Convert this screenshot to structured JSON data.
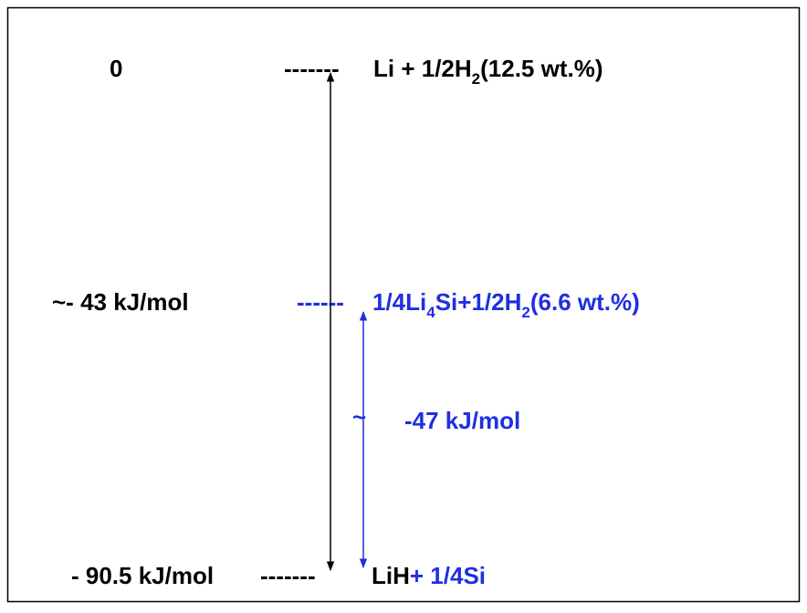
{
  "levels": [
    {
      "energy": "0",
      "dashes": "-------",
      "formula": [
        "Li + 1/2H",
        "2",
        "(12.5 wt.%)"
      ]
    },
    {
      "energy": "~- 43 kJ/mol",
      "dashes": "------",
      "formula": [
        "1/4Li",
        "4",
        "Si+1/2H",
        "2",
        "(6.6 wt.%)"
      ]
    },
    {
      "energy": "- 90.5 kJ/mol",
      "dashes": "-------",
      "formula": [
        "LiH",
        "+ 1/4Si"
      ]
    }
  ],
  "gap": {
    "tilde": "~",
    "label": "-47 kJ/mol"
  }
}
